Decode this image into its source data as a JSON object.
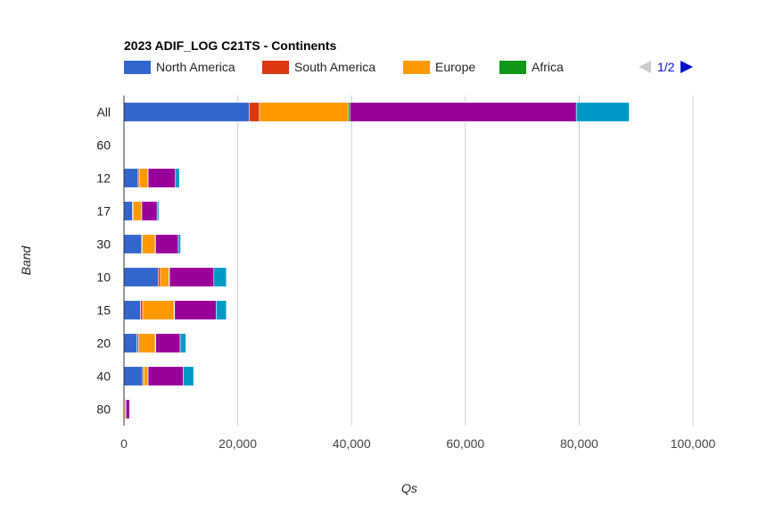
{
  "chart_data": {
    "type": "bar",
    "orientation": "horizontal",
    "stacked": true,
    "title": "2023 ADIF_LOG C21TS - Continents",
    "xlabel": "Qs",
    "ylabel": "Band",
    "xlim": [
      0,
      100000
    ],
    "x_ticks": [
      0,
      20000,
      40000,
      60000,
      80000,
      100000
    ],
    "x_tick_labels": [
      "0",
      "20,000",
      "40,000",
      "60,000",
      "80,000",
      "100,000"
    ],
    "grid": true,
    "legend_position": "top",
    "categories": [
      "All",
      "60",
      "12",
      "17",
      "30",
      "10",
      "15",
      "20",
      "40",
      "80"
    ],
    "series": [
      {
        "name": "North America",
        "color": "#3366cc",
        "values": [
          22000,
          50,
          2500,
          1500,
          3100,
          6000,
          2900,
          2300,
          3300,
          100
        ]
      },
      {
        "name": "South America",
        "color": "#dc3912",
        "values": [
          1800,
          10,
          200,
          100,
          100,
          400,
          400,
          300,
          200,
          30
        ]
      },
      {
        "name": "Europe",
        "color": "#ff9900",
        "values": [
          15600,
          40,
          1500,
          1500,
          2300,
          1500,
          5500,
          2900,
          700,
          220
        ]
      },
      {
        "name": "Africa",
        "color": "#109618",
        "values": [
          300,
          5,
          50,
          30,
          50,
          100,
          100,
          80,
          50,
          10
        ]
      },
      {
        "name": "",
        "color": "#990099",
        "values": [
          39800,
          50,
          4800,
          2700,
          4000,
          7800,
          7300,
          4300,
          6200,
          640
        ]
      },
      {
        "name": "",
        "color": "#0099c6",
        "values": [
          9300,
          20,
          700,
          300,
          400,
          2200,
          1800,
          1000,
          1800,
          10
        ]
      }
    ],
    "legend_pager": {
      "label": "1/2"
    }
  }
}
